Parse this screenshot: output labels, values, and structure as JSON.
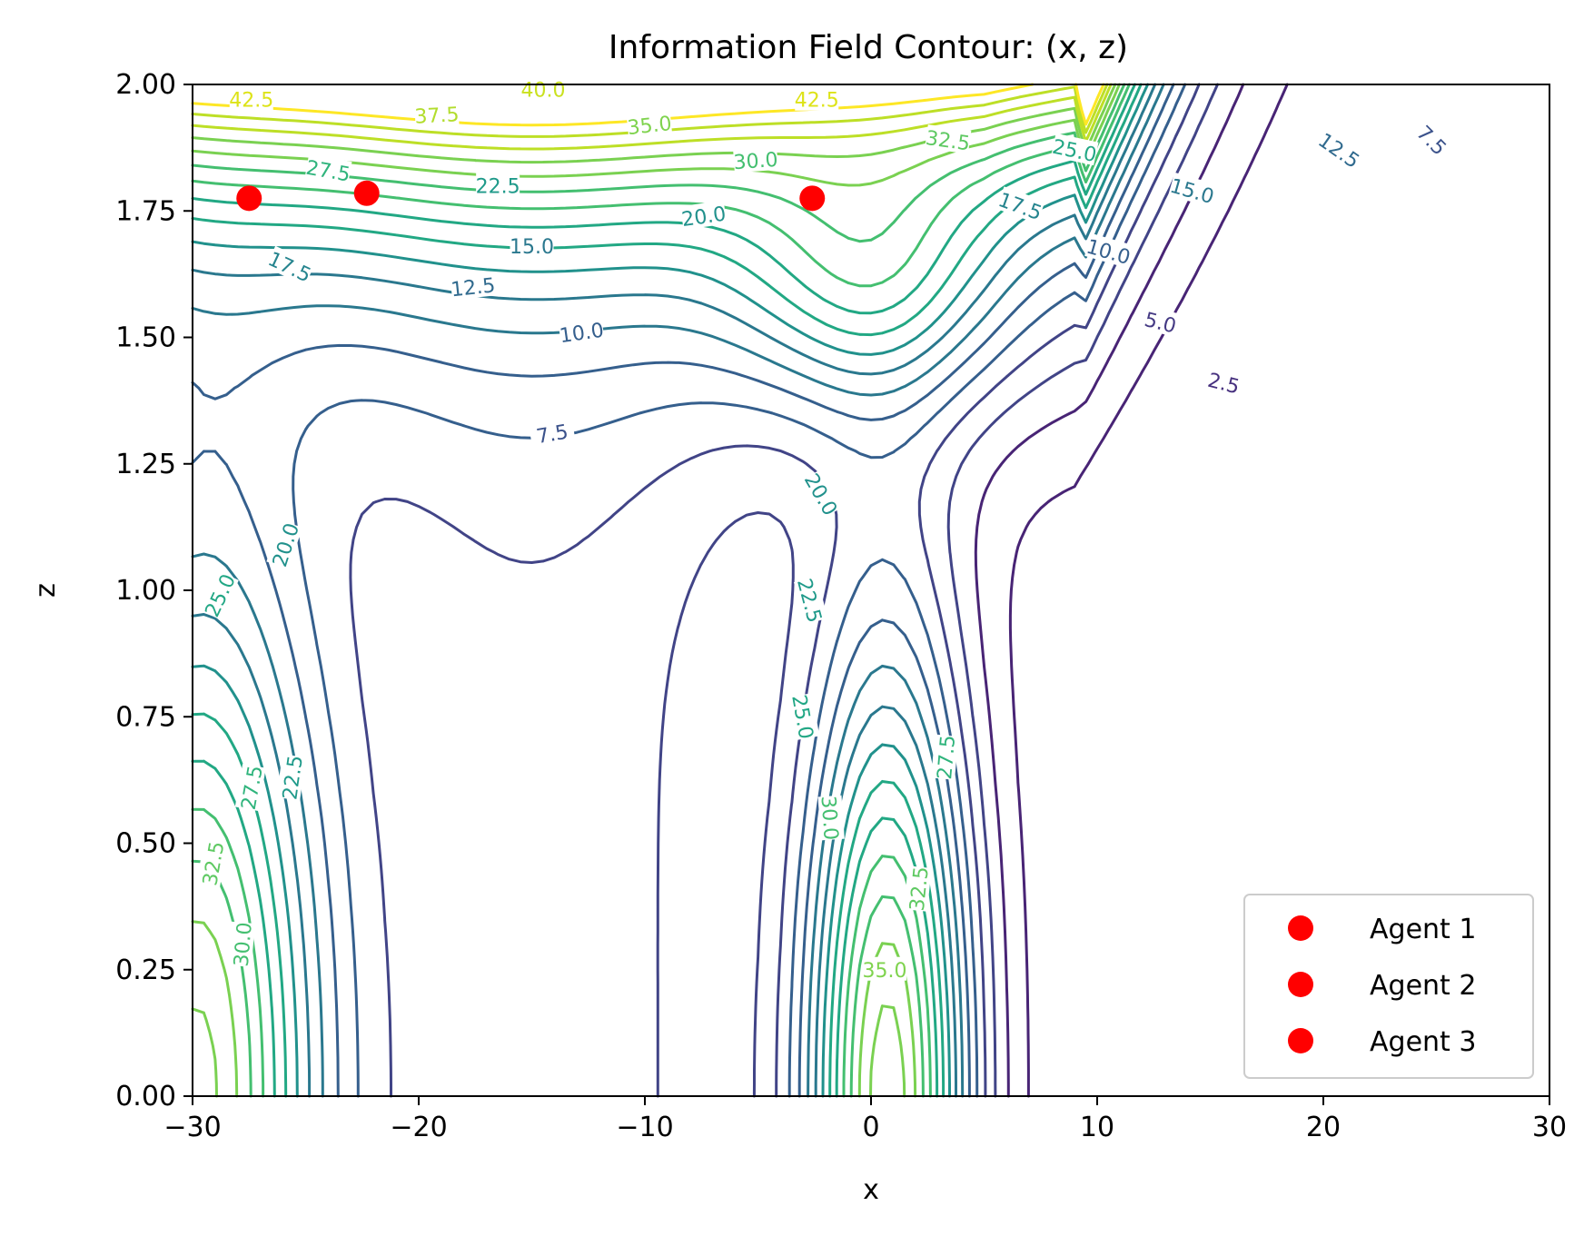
{
  "chart_data": {
    "type": "contour",
    "title": "Information Field Contour: (x, z)",
    "xlabel": "x",
    "ylabel": "z",
    "xlim": [
      -30,
      30
    ],
    "ylim": [
      0,
      2
    ],
    "xticks": [
      "−30",
      "−20",
      "−10",
      "0",
      "10",
      "20",
      "30"
    ],
    "xtick_values": [
      -30,
      -20,
      -10,
      0,
      10,
      20,
      30
    ],
    "yticks": [
      "0.00",
      "0.25",
      "0.50",
      "0.75",
      "1.00",
      "1.25",
      "1.50",
      "1.75",
      "2.00"
    ],
    "ytick_values": [
      0,
      0.25,
      0.5,
      0.75,
      1.0,
      1.25,
      1.5,
      1.75,
      2.0
    ],
    "colormap": "viridis",
    "contour_labels": [
      {
        "text": "42.5",
        "x": -27.4,
        "z": 1.97,
        "angle": 0,
        "color": "#dde318"
      },
      {
        "text": "37.5",
        "x": -19.2,
        "z": 1.94,
        "angle": 3,
        "color": "#b2dd2d"
      },
      {
        "text": "40.0",
        "x": -14.5,
        "z": 1.99,
        "angle": 0,
        "color": "#cae11f"
      },
      {
        "text": "42.5",
        "x": -2.4,
        "z": 1.97,
        "angle": 0,
        "color": "#dde318"
      },
      {
        "text": "35.0",
        "x": -9.8,
        "z": 1.92,
        "angle": 6,
        "color": "#7fd34e"
      },
      {
        "text": "32.5",
        "x": 3.4,
        "z": 1.89,
        "angle": -8,
        "color": "#5ec962"
      },
      {
        "text": "25.0",
        "x": 9.0,
        "z": 1.87,
        "angle": -12,
        "color": "#22a785"
      },
      {
        "text": "30.0",
        "x": -5.1,
        "z": 1.85,
        "angle": 4,
        "color": "#44bf70"
      },
      {
        "text": "27.5",
        "x": -24.0,
        "z": 1.83,
        "angle": -10,
        "color": "#2fb47c"
      },
      {
        "text": "22.5",
        "x": -16.5,
        "z": 1.8,
        "angle": 0,
        "color": "#1f9a8a"
      },
      {
        "text": "20.0",
        "x": -7.4,
        "z": 1.74,
        "angle": 8,
        "color": "#21918c"
      },
      {
        "text": "17.5",
        "x": 6.6,
        "z": 1.76,
        "angle": -20,
        "color": "#25848e"
      },
      {
        "text": "15.0",
        "x": 14.2,
        "z": 1.79,
        "angle": -16,
        "color": "#2a788e"
      },
      {
        "text": "12.5",
        "x": 20.7,
        "z": 1.87,
        "angle": -35,
        "color": "#306a8e"
      },
      {
        "text": "7.5",
        "x": 24.8,
        "z": 1.89,
        "angle": -45,
        "color": "#3b528b"
      },
      {
        "text": "17.5",
        "x": -25.7,
        "z": 1.64,
        "angle": -25,
        "color": "#25848e"
      },
      {
        "text": "15.0",
        "x": -15.0,
        "z": 1.68,
        "angle": 0,
        "color": "#2a788e"
      },
      {
        "text": "12.5",
        "x": -17.6,
        "z": 1.6,
        "angle": 6,
        "color": "#306a8e"
      },
      {
        "text": "10.0",
        "x": 10.5,
        "z": 1.67,
        "angle": -16,
        "color": "#355f8d"
      },
      {
        "text": "5.0",
        "x": 12.8,
        "z": 1.53,
        "angle": -14,
        "color": "#443983"
      },
      {
        "text": "10.0",
        "x": -12.8,
        "z": 1.51,
        "angle": 8,
        "color": "#355f8d"
      },
      {
        "text": "2.5",
        "x": 15.6,
        "z": 1.41,
        "angle": -14,
        "color": "#46307e"
      },
      {
        "text": "7.5",
        "x": -14.1,
        "z": 1.31,
        "angle": 10,
        "color": "#3b528b"
      },
      {
        "text": "20.0",
        "x": -2.2,
        "z": 1.19,
        "angle": -60,
        "color": "#21918c"
      },
      {
        "text": "20.0",
        "x": -25.9,
        "z": 1.09,
        "angle": 72,
        "color": "#21918c"
      },
      {
        "text": "25.0",
        "x": -28.8,
        "z": 0.99,
        "angle": 65,
        "color": "#22a785"
      },
      {
        "text": "22.5",
        "x": -2.7,
        "z": 0.98,
        "angle": -75,
        "color": "#1f9a8a"
      },
      {
        "text": "25.0",
        "x": -3.0,
        "z": 0.75,
        "angle": -80,
        "color": "#22a785"
      },
      {
        "text": "22.5",
        "x": -25.6,
        "z": 0.63,
        "angle": 82,
        "color": "#1f9a8a"
      },
      {
        "text": "27.5",
        "x": -27.4,
        "z": 0.61,
        "angle": 80,
        "color": "#2fb47c"
      },
      {
        "text": "27.5",
        "x": 3.3,
        "z": 0.67,
        "angle": 85,
        "color": "#2fb47c"
      },
      {
        "text": "30.0",
        "x": -1.8,
        "z": 0.55,
        "angle": -86,
        "color": "#44bf70"
      },
      {
        "text": "32.5",
        "x": -29.1,
        "z": 0.46,
        "angle": 80,
        "color": "#5ec962"
      },
      {
        "text": "32.5",
        "x": 2.1,
        "z": 0.41,
        "angle": 84,
        "color": "#5ec962"
      },
      {
        "text": "30.0",
        "x": -27.8,
        "z": 0.3,
        "angle": 85,
        "color": "#44bf70"
      },
      {
        "text": "35.0",
        "x": 0.6,
        "z": 0.25,
        "angle": 0,
        "color": "#7fd34e"
      }
    ],
    "scatter": [
      {
        "name": "Agent 1",
        "x": -27.5,
        "z": 1.775,
        "color": "#ff0000"
      },
      {
        "name": "Agent 2",
        "x": -22.3,
        "z": 1.785,
        "color": "#ff0000"
      },
      {
        "name": "Agent 3",
        "x": -2.6,
        "z": 1.775,
        "color": "#ff0000"
      }
    ],
    "legend_position": "lower-right"
  }
}
